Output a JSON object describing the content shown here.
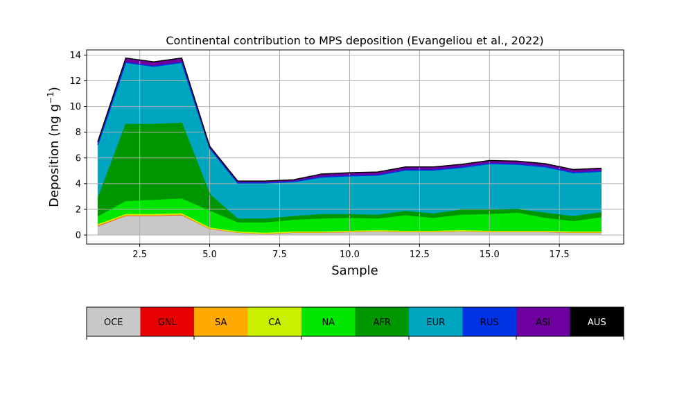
{
  "chart_data": {
    "type": "area",
    "stacked": true,
    "title": "Continental contribution to MPS deposition (Evangeliou et al., 2022)",
    "xlabel": "Sample",
    "ylabel": "Deposition (ng g",
    "ylabel_sup": "−1",
    "ylabel_end": ")",
    "xlim": [
      0.6,
      19.8
    ],
    "ylim": [
      -0.7,
      14.4
    ],
    "xticks": [
      2.5,
      5.0,
      7.5,
      10.0,
      12.5,
      15.0,
      17.5
    ],
    "xtick_labels": [
      "2.5",
      "5.0",
      "7.5",
      "10.0",
      "12.5",
      "15.0",
      "17.5"
    ],
    "yticks": [
      0,
      2,
      4,
      6,
      8,
      10,
      12,
      14
    ],
    "ytick_labels": [
      "0",
      "2",
      "4",
      "6",
      "8",
      "10",
      "12",
      "14"
    ],
    "grid": true,
    "x": [
      1,
      2,
      3,
      4,
      5,
      6,
      7,
      8,
      9,
      10,
      11,
      12,
      13,
      14,
      15,
      16,
      17,
      18,
      19
    ],
    "series": [
      {
        "name": "OCE",
        "color": "#c8c8c8",
        "values": [
          0.7,
          1.5,
          1.5,
          1.55,
          0.5,
          0.2,
          0.1,
          0.2,
          0.2,
          0.25,
          0.3,
          0.25,
          0.25,
          0.3,
          0.25,
          0.25,
          0.25,
          0.2,
          0.2
        ]
      },
      {
        "name": "GNL",
        "color": "#e60000",
        "values": [
          0.02,
          0.02,
          0.02,
          0.02,
          0.01,
          0.01,
          0.01,
          0.01,
          0.01,
          0.01,
          0.01,
          0.01,
          0.01,
          0.01,
          0.01,
          0.01,
          0.01,
          0.01,
          0.01
        ]
      },
      {
        "name": "SA",
        "color": "#ffaa00",
        "values": [
          0.02,
          0.02,
          0.02,
          0.02,
          0.01,
          0.01,
          0.01,
          0.01,
          0.01,
          0.01,
          0.01,
          0.01,
          0.01,
          0.01,
          0.01,
          0.01,
          0.01,
          0.01,
          0.01
        ]
      },
      {
        "name": "CA",
        "color": "#c8f000",
        "values": [
          0.06,
          0.06,
          0.06,
          0.06,
          0.03,
          0.02,
          0.02,
          0.02,
          0.02,
          0.02,
          0.02,
          0.02,
          0.02,
          0.02,
          0.02,
          0.02,
          0.02,
          0.02,
          0.02
        ]
      },
      {
        "name": "NA",
        "color": "#00e600",
        "values": [
          0.6,
          1.0,
          1.1,
          1.15,
          1.3,
          0.7,
          0.8,
          0.9,
          1.0,
          1.0,
          0.9,
          1.2,
          1.0,
          1.2,
          1.3,
          1.4,
          1.0,
          0.8,
          1.1
        ]
      },
      {
        "name": "AFR",
        "color": "#009600",
        "values": [
          1.4,
          6.0,
          5.9,
          5.9,
          1.3,
          0.3,
          0.3,
          0.3,
          0.35,
          0.3,
          0.3,
          0.35,
          0.35,
          0.4,
          0.35,
          0.3,
          0.4,
          0.4,
          0.4
        ]
      },
      {
        "name": "EUR",
        "color": "#00a5bf",
        "values": [
          4.2,
          4.8,
          4.5,
          4.7,
          3.6,
          2.8,
          2.8,
          2.7,
          2.9,
          3.0,
          3.1,
          3.2,
          3.4,
          3.3,
          3.6,
          3.5,
          3.6,
          3.4,
          3.2
        ]
      },
      {
        "name": "RUS",
        "color": "#0032e6",
        "values": [
          0.02,
          0.02,
          0.02,
          0.02,
          0.01,
          0.01,
          0.01,
          0.01,
          0.01,
          0.01,
          0.01,
          0.01,
          0.01,
          0.01,
          0.01,
          0.01,
          0.01,
          0.01,
          0.01
        ]
      },
      {
        "name": "ASI",
        "color": "#6e00a0",
        "values": [
          0.2,
          0.3,
          0.3,
          0.3,
          0.1,
          0.1,
          0.1,
          0.1,
          0.2,
          0.2,
          0.2,
          0.2,
          0.2,
          0.2,
          0.2,
          0.2,
          0.2,
          0.2,
          0.2
        ]
      },
      {
        "name": "AUS",
        "color": "#000000",
        "values": [
          0.05,
          0.05,
          0.05,
          0.05,
          0.05,
          0.05,
          0.05,
          0.05,
          0.05,
          0.05,
          0.05,
          0.05,
          0.05,
          0.05,
          0.05,
          0.05,
          0.05,
          0.05,
          0.05
        ]
      }
    ],
    "legend": {
      "placement": "bottom colorbar",
      "entries": [
        {
          "label": "OCE",
          "color": "#c8c8c8",
          "text_color": "#000000"
        },
        {
          "label": "GNL",
          "color": "#e60000",
          "text_color": "#000000"
        },
        {
          "label": "SA",
          "color": "#ffaa00",
          "text_color": "#000000"
        },
        {
          "label": "CA",
          "color": "#c8f000",
          "text_color": "#000000"
        },
        {
          "label": "NA",
          "color": "#00e600",
          "text_color": "#000000"
        },
        {
          "label": "AFR",
          "color": "#009600",
          "text_color": "#000000"
        },
        {
          "label": "EUR",
          "color": "#00a5bf",
          "text_color": "#000000"
        },
        {
          "label": "RUS",
          "color": "#0032e6",
          "text_color": "#000000"
        },
        {
          "label": "ASI",
          "color": "#6e00a0",
          "text_color": "#000000"
        },
        {
          "label": "AUS",
          "color": "#000000",
          "text_color": "#ffffff"
        }
      ]
    }
  }
}
